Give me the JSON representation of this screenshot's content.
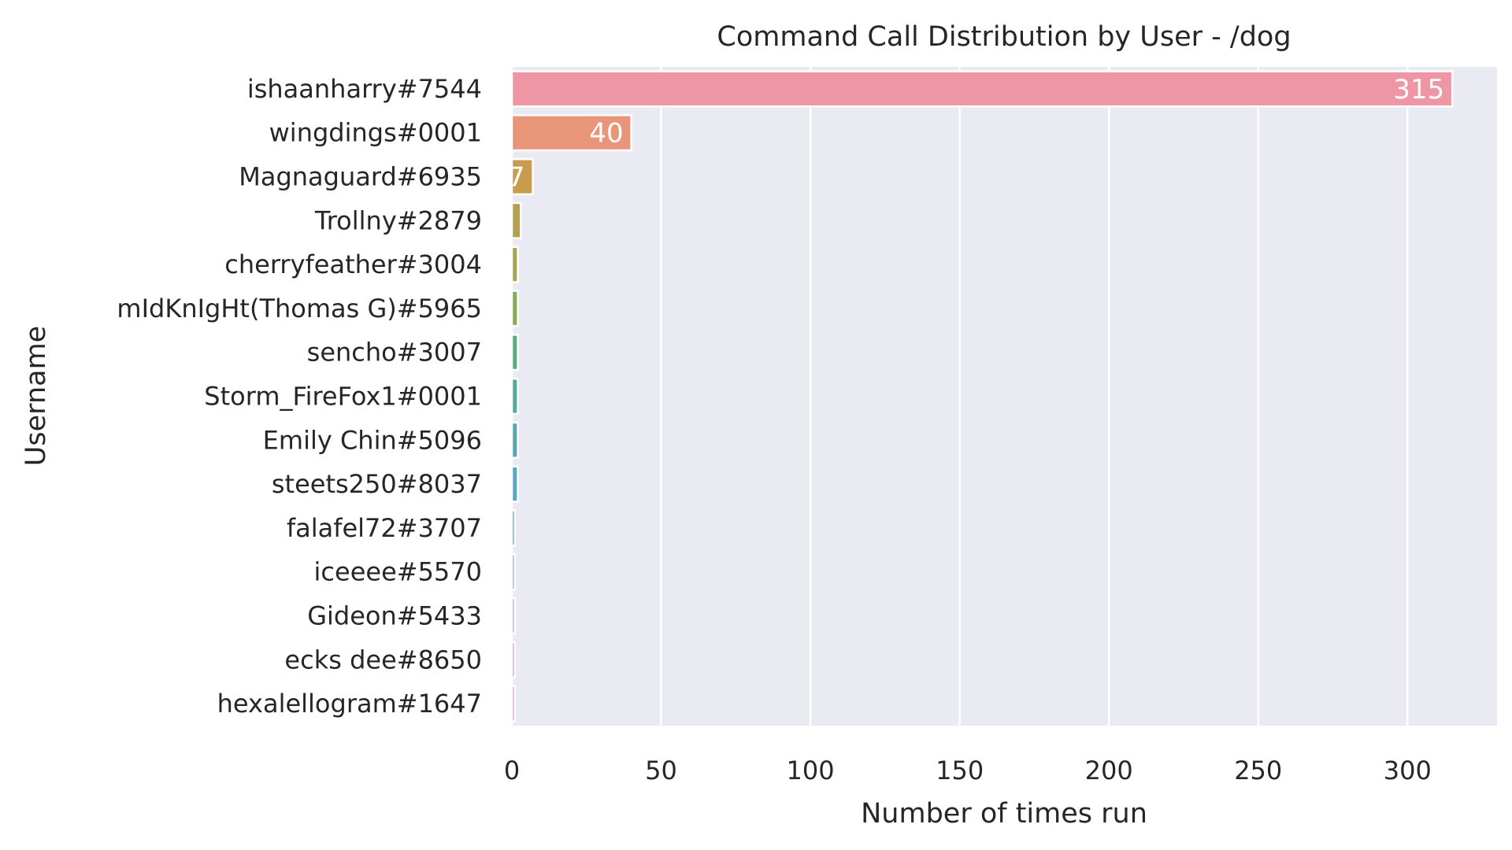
{
  "chart_data": {
    "type": "bar",
    "orientation": "horizontal",
    "title": "Command Call Distribution by User - /dog",
    "xlabel": "Number of times run",
    "ylabel": "Username",
    "xlim": [
      0,
      330
    ],
    "xticks": [
      0,
      50,
      100,
      150,
      200,
      250,
      300
    ],
    "grid": true,
    "categories": [
      "ishaanharry#7544",
      "wingdings#0001",
      "Magnaguard#6935",
      "Trollny#2879",
      "cherryfeather#3004",
      "mIdKnIgHt(Thomas G)#5965",
      "sencho#3007",
      "Storm_FireFox1#0001",
      "Emily Chin#5096",
      "steets250#8037",
      "falafel72#3707",
      "iceeee#5570",
      "Gideon#5433",
      "ecks dee#8650",
      "hexalellogram#1647"
    ],
    "values": [
      315,
      40,
      7,
      3,
      2,
      2,
      2,
      2,
      2,
      2,
      1,
      1,
      1,
      1,
      1
    ],
    "colors": [
      "#ee96a4",
      "#e8957a",
      "#c89b4e",
      "#b5a04d",
      "#a4a64c",
      "#84ac51",
      "#53b07d",
      "#50ae98",
      "#52aab0",
      "#55a9c2",
      "#5aa6d8",
      "#8ba7ea",
      "#b5a2ee",
      "#dc9ae8",
      "#f396d6"
    ]
  }
}
